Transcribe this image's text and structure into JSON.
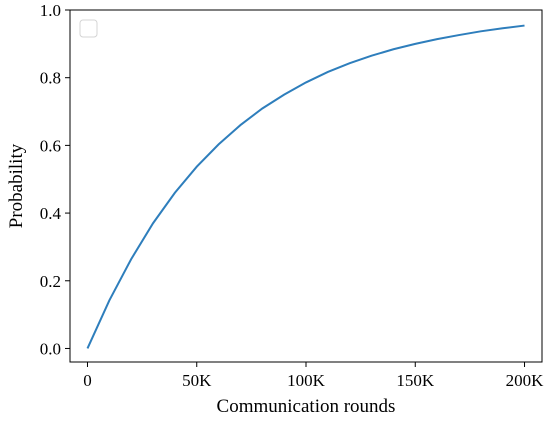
{
  "chart_data": {
    "type": "line",
    "xlabel": "Communication rounds",
    "ylabel": "Probability",
    "xlim": [
      -8000,
      208000
    ],
    "ylim": [
      -0.04,
      1.0
    ],
    "xticks": [
      {
        "value": 0,
        "label": "0"
      },
      {
        "value": 50000,
        "label": "50K"
      },
      {
        "value": 100000,
        "label": "100K"
      },
      {
        "value": 150000,
        "label": "150K"
      },
      {
        "value": 200000,
        "label": "200K"
      }
    ],
    "yticks": [
      {
        "value": 0.0,
        "label": "0.0"
      },
      {
        "value": 0.2,
        "label": "0.2"
      },
      {
        "value": 0.4,
        "label": "0.4"
      },
      {
        "value": 0.6,
        "label": "0.6"
      },
      {
        "value": 0.8,
        "label": "0.8"
      },
      {
        "value": 1.0,
        "label": "1.0"
      }
    ],
    "grid": false,
    "legend": "top-left, empty",
    "series": [
      {
        "color": "#2e7ebc",
        "x": [
          0,
          10000,
          20000,
          30000,
          40000,
          50000,
          60000,
          70000,
          80000,
          90000,
          100000,
          110000,
          120000,
          130000,
          140000,
          150000,
          160000,
          170000,
          180000,
          190000,
          200000
        ],
        "y": [
          0.0,
          0.142,
          0.264,
          0.37,
          0.46,
          0.537,
          0.603,
          0.66,
          0.709,
          0.75,
          0.786,
          0.817,
          0.843,
          0.865,
          0.884,
          0.9,
          0.914,
          0.926,
          0.937,
          0.946,
          0.954
        ]
      }
    ]
  }
}
